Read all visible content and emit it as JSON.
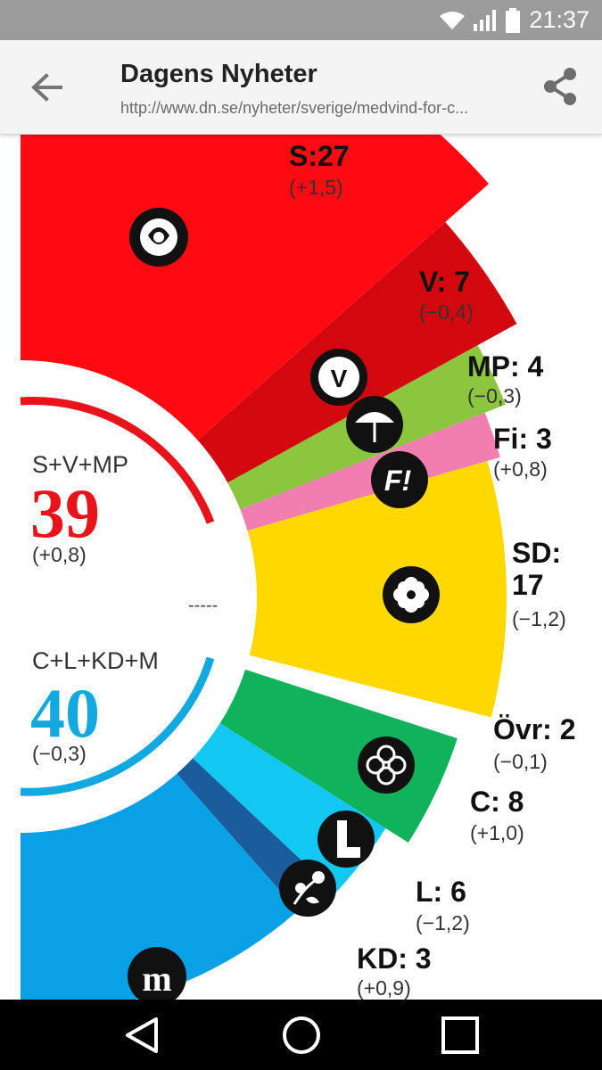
{
  "status_bar": {
    "time": "21:37"
  },
  "toolbar": {
    "title": "Dagens Nyheter",
    "url": "http://www.dn.se/nyheter/sverige/medvind-for-c..."
  },
  "chart_data": {
    "type": "pie",
    "style": "half-donut",
    "slices": [
      {
        "party": "S",
        "label": "S:27",
        "value": 27,
        "change": "(+1,5)",
        "color": "#ff0a12"
      },
      {
        "party": "V",
        "label": "V: 7",
        "value": 7,
        "change": "(−0,4)",
        "color": "#d3080e"
      },
      {
        "party": "MP",
        "label": "MP: 4",
        "value": 4,
        "change": "(−0,3)",
        "color": "#8cc63f"
      },
      {
        "party": "Fi",
        "label": "Fi: 3",
        "value": 3,
        "change": "(+0,8)",
        "color": "#f27db1"
      },
      {
        "party": "SD",
        "label_line1": "SD:",
        "label_line2": "17",
        "value": 17,
        "change": "(−1,2)",
        "color": "#ffd800"
      },
      {
        "party": "Övr",
        "label": "Övr: 2",
        "value": 2,
        "change": "(−0,1)",
        "color": "#ffffff"
      },
      {
        "party": "C",
        "label": "C: 8",
        "value": 8,
        "change": "(+1,0)",
        "color": "#10b25b"
      },
      {
        "party": "L",
        "label": "L: 6",
        "value": 6,
        "change": "(−1,2)",
        "color": "#12c8f3"
      },
      {
        "party": "KD",
        "label": "KD: 3",
        "value": 3,
        "change": "(+0,9)",
        "color": "#1b5d9c"
      },
      {
        "party": "M",
        "value": 23,
        "color": "#0aa0e6"
      }
    ],
    "blocks": [
      {
        "name": "S+V+MP",
        "value": "39",
        "change": "(+0,8)",
        "color": "#e8141b"
      },
      {
        "name": "C+L+KD+M",
        "value": "40",
        "change": "(−0,3)",
        "color": "#14a8e0"
      }
    ],
    "divider": "-----"
  },
  "icons": {
    "back": "arrow-left-icon",
    "share": "share-icon",
    "wifi": "wifi-icon",
    "signal": "signal-icon",
    "battery": "battery-icon",
    "party_logos": [
      "rose-logo",
      "v-logo",
      "dandelion-logo",
      "fi-logo",
      "flower-logo",
      "clover-logo",
      "l-logo",
      "kd-logo",
      "m-logo"
    ]
  },
  "nav": {
    "back": "nav-back-icon",
    "home": "nav-home-icon",
    "recents": "nav-recents-icon"
  }
}
